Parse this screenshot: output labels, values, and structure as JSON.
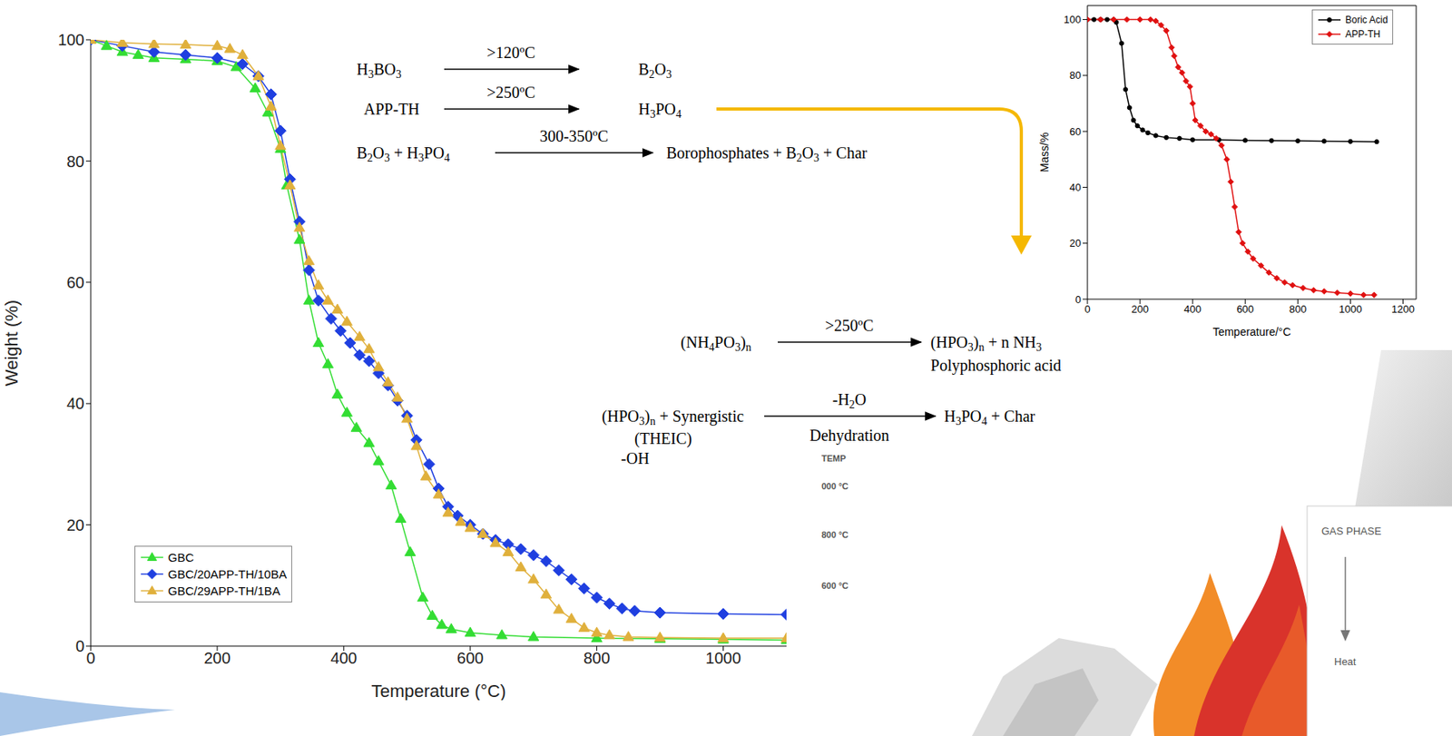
{
  "chart_data": [
    {
      "type": "line",
      "x_label": "Temperature (°C)",
      "y_label": "Weight (%)",
      "xlim": [
        0,
        1100
      ],
      "ylim": [
        0,
        100
      ],
      "xticks": [
        0,
        200,
        400,
        600,
        800,
        1000
      ],
      "yticks": [
        0,
        20,
        40,
        60,
        80,
        100
      ],
      "legend": "lower left",
      "series": [
        {
          "name": "GBC",
          "color": "#33dd33",
          "marker": "triangle",
          "x": [
            0,
            25,
            50,
            75,
            100,
            150,
            200,
            230,
            260,
            280,
            300,
            310,
            330,
            345,
            360,
            375,
            390,
            405,
            420,
            440,
            455,
            475,
            490,
            505,
            525,
            540,
            555,
            570,
            600,
            650,
            700,
            800,
            900,
            1000,
            1100
          ],
          "values": [
            100,
            99,
            98,
            97.5,
            97,
            96.8,
            96.5,
            95.5,
            92,
            88,
            82,
            76,
            67,
            57,
            50,
            46.5,
            41.5,
            38.5,
            36,
            33.5,
            30.5,
            26.5,
            21,
            15.5,
            8,
            5,
            3.5,
            2.8,
            2.2,
            1.8,
            1.5,
            1.3,
            1.2,
            1.1,
            1
          ]
        },
        {
          "name": "GBC/20APP-TH/10BA",
          "color": "#1f3fe0",
          "marker": "diamond",
          "x": [
            0,
            50,
            100,
            150,
            200,
            240,
            265,
            285,
            300,
            315,
            330,
            345,
            360,
            380,
            395,
            410,
            425,
            440,
            455,
            470,
            485,
            500,
            515,
            535,
            550,
            565,
            580,
            600,
            620,
            640,
            660,
            680,
            700,
            720,
            740,
            760,
            780,
            800,
            820,
            840,
            860,
            900,
            1000,
            1100
          ],
          "values": [
            100,
            99,
            98,
            97.5,
            97,
            96,
            94,
            91,
            85,
            77,
            70,
            62,
            57,
            54,
            52,
            50,
            48,
            47,
            45,
            43,
            40.5,
            38,
            34,
            30,
            26,
            23,
            21.5,
            20,
            18.5,
            17.5,
            16.8,
            16,
            15,
            14,
            12.5,
            11,
            9.5,
            8,
            7,
            6.2,
            5.8,
            5.5,
            5.3,
            5.2
          ]
        },
        {
          "name": "GBC/29APP-TH/1BA",
          "color": "#e0b03c",
          "marker": "triangle",
          "x": [
            0,
            50,
            100,
            150,
            200,
            220,
            240,
            265,
            285,
            300,
            315,
            330,
            345,
            360,
            375,
            390,
            405,
            425,
            440,
            455,
            470,
            485,
            500,
            515,
            530,
            550,
            565,
            585,
            600,
            620,
            640,
            660,
            680,
            700,
            720,
            740,
            760,
            780,
            800,
            820,
            850,
            900,
            1000,
            1100
          ],
          "values": [
            100,
            99.5,
            99.3,
            99.2,
            99,
            98.5,
            97.5,
            94,
            89,
            82.5,
            76,
            69,
            63.5,
            59.5,
            57,
            55.5,
            53.5,
            51,
            49,
            46,
            43.5,
            41,
            37.5,
            33,
            28,
            25,
            22,
            20.5,
            19.5,
            18.5,
            17,
            15.5,
            13,
            11,
            8.5,
            6,
            4.5,
            3,
            2.2,
            1.8,
            1.5,
            1.4,
            1.3,
            1.3
          ]
        }
      ]
    },
    {
      "type": "line",
      "x_label": "Temperature/°C",
      "y_label": "Mass/%",
      "xlim": [
        0,
        1250
      ],
      "ylim": [
        0,
        105
      ],
      "xticks": [
        0,
        200,
        400,
        600,
        800,
        1000,
        1200
      ],
      "yticks": [
        0,
        20,
        40,
        60,
        80,
        100
      ],
      "legend": "upper right",
      "series": [
        {
          "name": "Boric Acid",
          "color": "#000000",
          "marker": "circle",
          "x": [
            0,
            25,
            50,
            75,
            100,
            110,
            130,
            145,
            160,
            175,
            190,
            210,
            230,
            260,
            300,
            350,
            400,
            500,
            600,
            700,
            800,
            900,
            1000,
            1100
          ],
          "values": [
            100,
            100,
            100,
            100,
            100,
            99,
            91.5,
            75,
            68.5,
            64,
            62,
            60.5,
            59.5,
            58.5,
            57.8,
            57.5,
            57,
            57,
            56.8,
            56.7,
            56.6,
            56.5,
            56.4,
            56.3
          ]
        },
        {
          "name": "APP-TH",
          "color": "#e01010",
          "marker": "diamond",
          "x": [
            0,
            50,
            100,
            150,
            200,
            240,
            260,
            280,
            300,
            320,
            330,
            345,
            360,
            375,
            390,
            400,
            410,
            430,
            450,
            470,
            490,
            510,
            530,
            545,
            560,
            575,
            590,
            610,
            630,
            660,
            690,
            720,
            750,
            780,
            820,
            860,
            900,
            950,
            1000,
            1050,
            1090
          ],
          "values": [
            100,
            100,
            100,
            100,
            100,
            100,
            99.5,
            98,
            96,
            90,
            87,
            83,
            81,
            78,
            76,
            70,
            64,
            62,
            60,
            59,
            57.5,
            55,
            50,
            42,
            33,
            24,
            20,
            17,
            14.5,
            12,
            9.5,
            7.5,
            6,
            5,
            4,
            3.2,
            2.8,
            2.3,
            2,
            1.5,
            1.5
          ]
        }
      ]
    }
  ],
  "equations": [
    {
      "reactants": "H3BO3",
      "condition": ">120ºC",
      "products": "B2O3"
    },
    {
      "reactants": "APP-TH",
      "condition": ">250ºC",
      "products": "H3PO4"
    },
    {
      "reactants": "B2O3 + H3PO4",
      "condition": "300-350ºC",
      "products": "Borophosphates + B2O3 + Char"
    },
    {
      "reactants": "(NH4PO3)n",
      "condition": ">250ºC",
      "products": "(HPO3)n + n NH3",
      "product_note": "Polyphosphoric acid"
    },
    {
      "reactants": "(HPO3)n + Synergistic",
      "reactant_notes": [
        "(THEIC)",
        "-OH"
      ],
      "condition": "-H2O",
      "condition_below": "Dehydration",
      "products": "H3PO4 + Char"
    }
  ],
  "decoration": {
    "temperature_scale": [
      "TEMP",
      "000 °C",
      "800 °C",
      "600 °C"
    ],
    "panel": [
      "GAS PHASE",
      "Heat"
    ]
  }
}
